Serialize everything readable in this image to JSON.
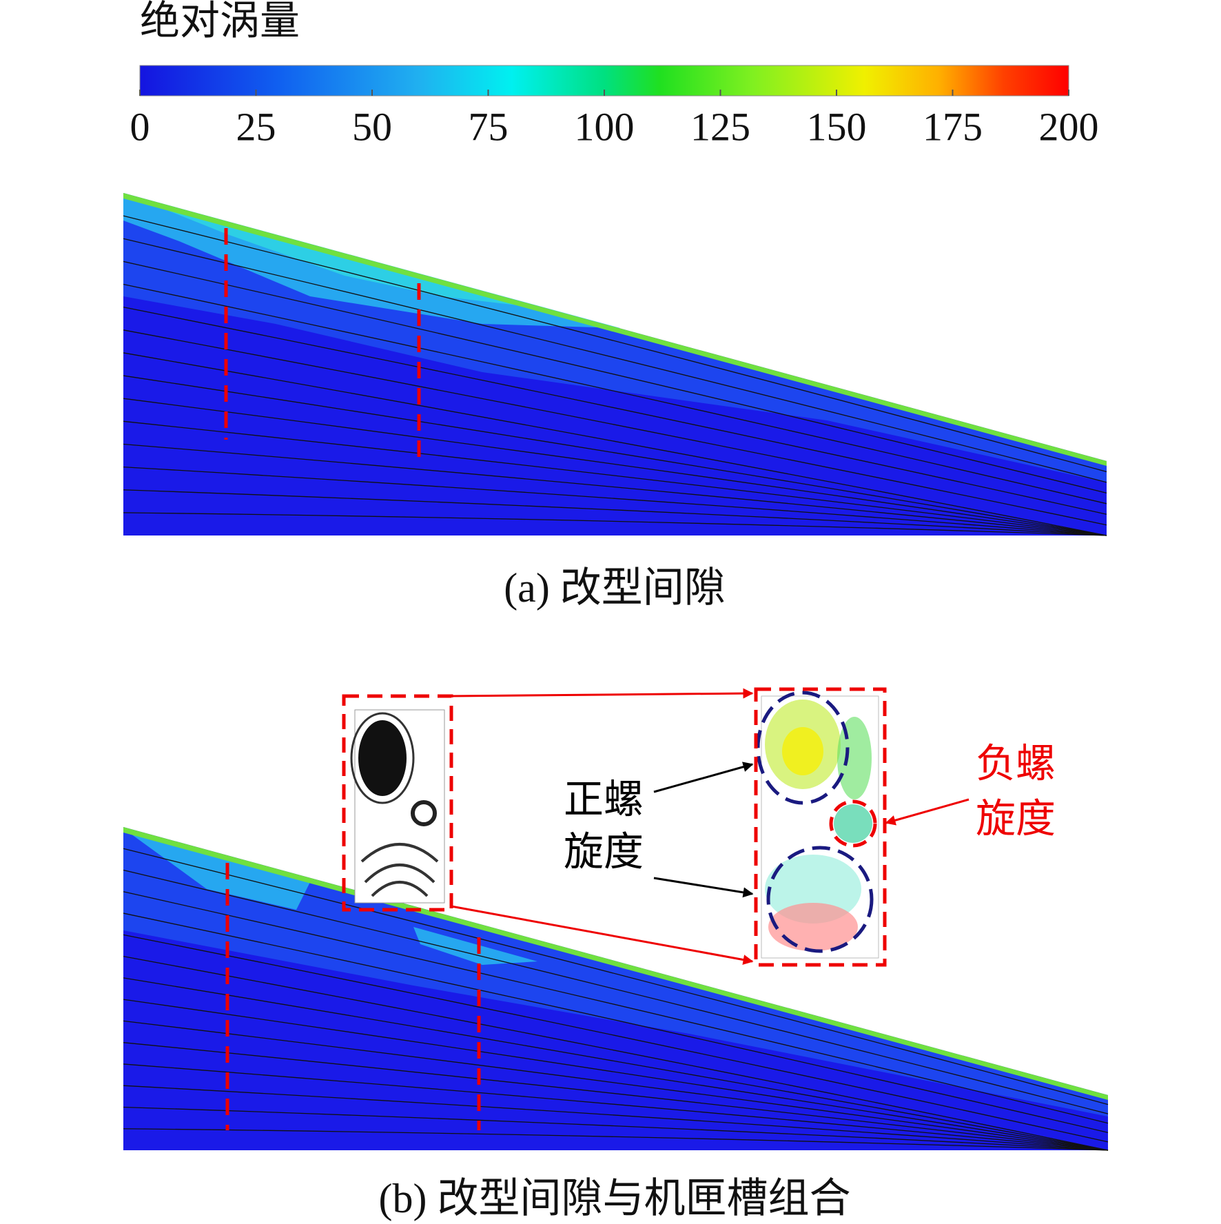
{
  "colorbar": {
    "title": "绝对涡量",
    "lim": [
      0,
      200
    ],
    "ticks": [
      0,
      25,
      50,
      75,
      100,
      125,
      150,
      175,
      200
    ]
  },
  "panels": [
    {
      "caption": "(a) 改型间隙"
    },
    {
      "caption": "(b) 改型间隙与机匣槽组合"
    }
  ],
  "annotations": {
    "positive": [
      "正螺",
      "旋度"
    ],
    "negative": [
      "负螺",
      "旋度"
    ]
  }
}
